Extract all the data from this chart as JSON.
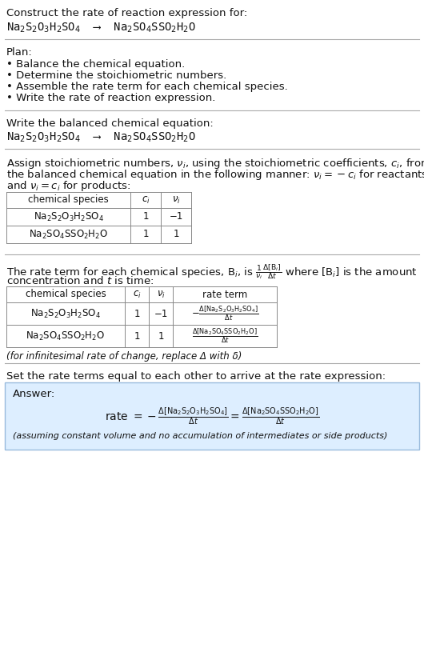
{
  "title_line1": "Construct the rate of reaction expression for:",
  "reaction_line": "Na$_2$S$_2$O$_3$H$_2$SO$_4$  ⟶  Na$_2$SO$_4$SSO$_2$H$_2$O",
  "plan_header": "Plan:",
  "plan_items": [
    "• Balance the chemical equation.",
    "• Determine the stoichiometric numbers.",
    "• Assemble the rate term for each chemical species.",
    "• Write the rate of reaction expression."
  ],
  "balanced_eq_header": "Write the balanced chemical equation:",
  "balanced_eq": "Na$_2$S$_2$O$_3$H$_2$SO$_4$  ⟶  Na$_2$SO$_4$SSO$_2$H$_2$O",
  "stoich_intro_lines": [
    "Assign stoichiometric numbers, $\\nu_i$, using the stoichiometric coefficients, $c_i$, from",
    "the balanced chemical equation in the following manner: $\\nu_i = -c_i$ for reactants",
    "and $\\nu_i = c_i$ for products:"
  ],
  "table1_headers": [
    "chemical species",
    "$c_i$",
    "$\\nu_i$"
  ],
  "table1_rows": [
    [
      "Na$_2$S$_2$O$_3$H$_2$SO$_4$",
      "1",
      "−1"
    ],
    [
      "Na$_2$SO$_4$SSO$_2$H$_2$O",
      "1",
      "1"
    ]
  ],
  "rate_term_intro1": "The rate term for each chemical species, B$_i$, is $\\frac{1}{\\nu_i}\\frac{\\Delta[\\mathrm{B}_i]}{\\Delta t}$ where [B$_i$] is the amount",
  "rate_term_intro2": "concentration and $t$ is time:",
  "table2_headers": [
    "chemical species",
    "$c_i$",
    "$\\nu_i$",
    "rate term"
  ],
  "table2_rows": [
    [
      "Na$_2$S$_2$O$_3$H$_2$SO$_4$",
      "1",
      "−1",
      "$-\\frac{\\Delta[\\mathrm{Na_2S_2O_3H_2SO_4}]}{\\Delta t}$"
    ],
    [
      "Na$_2$SO$_4$SSO$_2$H$_2$O",
      "1",
      "1",
      "$\\frac{\\Delta[\\mathrm{Na_2SO_4SSO_2H_2O}]}{\\Delta t}$"
    ]
  ],
  "infinitesimal_note": "(for infinitesimal rate of change, replace Δ with δ)",
  "set_rate_text": "Set the rate terms equal to each other to arrive at the rate expression:",
  "answer_label": "Answer:",
  "rate_expression": "rate $= -\\frac{\\Delta[\\mathrm{Na_2S_2O_3H_2SO_4}]}{\\Delta t} = \\frac{\\Delta[\\mathrm{Na_2SO_4SSO_2H_2O}]}{\\Delta t}$",
  "assumption_note": "(assuming constant volume and no accumulation of intermediates or side products)",
  "bg_color": "#ffffff",
  "answer_box_color": "#ddeeff",
  "table_border_color": "#888888",
  "text_color": "#111111",
  "font_size": 9.5,
  "small_font_size": 8.5,
  "mono_font": "DejaVu Sans Mono"
}
